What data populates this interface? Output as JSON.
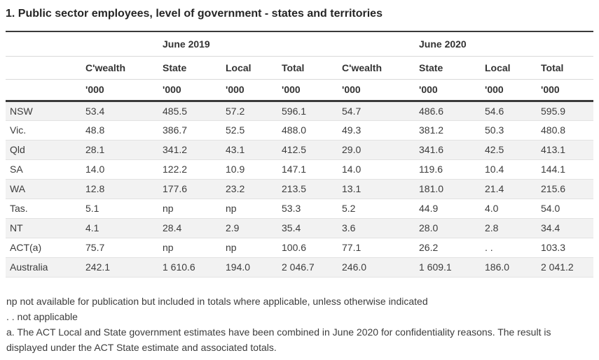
{
  "chart_data": {
    "type": "table",
    "title": "1. Public sector employees, level of government - states and territories",
    "group_headers": [
      "June 2019",
      "June 2020"
    ],
    "columns": [
      "C'wealth",
      "State",
      "Local",
      "Total",
      "C'wealth",
      "State",
      "Local",
      "Total"
    ],
    "units": [
      "'000",
      "'000",
      "'000",
      "'000",
      "'000",
      "'000",
      "'000",
      "'000"
    ],
    "rows": [
      {
        "label": "NSW",
        "values": [
          "53.4",
          "485.5",
          "57.2",
          "596.1",
          "54.7",
          "486.6",
          "54.6",
          "595.9"
        ]
      },
      {
        "label": "Vic.",
        "values": [
          "48.8",
          "386.7",
          "52.5",
          "488.0",
          "49.3",
          "381.2",
          "50.3",
          "480.8"
        ]
      },
      {
        "label": "Qld",
        "values": [
          "28.1",
          "341.2",
          "43.1",
          "412.5",
          "29.0",
          "341.6",
          "42.5",
          "413.1"
        ]
      },
      {
        "label": "SA",
        "values": [
          "14.0",
          "122.2",
          "10.9",
          "147.1",
          "14.0",
          "119.6",
          "10.4",
          "144.1"
        ]
      },
      {
        "label": "WA",
        "values": [
          "12.8",
          "177.6",
          "23.2",
          "213.5",
          "13.1",
          "181.0",
          "21.4",
          "215.6"
        ]
      },
      {
        "label": "Tas.",
        "values": [
          "5.1",
          "np",
          "np",
          "53.3",
          "5.2",
          "44.9",
          "4.0",
          "54.0"
        ]
      },
      {
        "label": "NT",
        "values": [
          "4.1",
          "28.4",
          "2.9",
          "35.4",
          "3.6",
          "28.0",
          "2.8",
          "34.4"
        ]
      },
      {
        "label": "ACT(a)",
        "values": [
          "75.7",
          "np",
          "np",
          "100.6",
          "77.1",
          "26.2",
          ". .",
          "103.3"
        ]
      },
      {
        "label": "Australia",
        "values": [
          "242.1",
          "1 610.6",
          "194.0",
          "2 046.7",
          "246.0",
          "1 609.1",
          "186.0",
          "2 041.2"
        ]
      }
    ],
    "footnotes": [
      "np not available for publication but included in totals where applicable, unless otherwise indicated",
      ". . not applicable",
      "a. The ACT Local and State government estimates have been combined in June 2020 for confidentiality reasons. The result is displayed under the ACT State estimate and associated totals."
    ]
  }
}
